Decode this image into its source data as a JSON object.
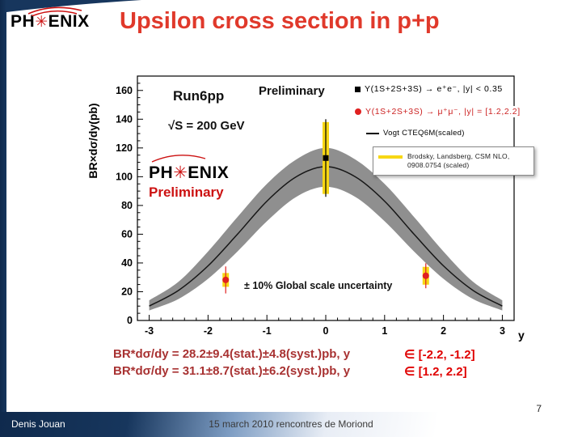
{
  "colors": {
    "navy": "#17365d",
    "title_red": "#e0392b",
    "formula_red": "#a83232",
    "range_red": "#e00000",
    "band_gray": "#8f8f8f",
    "curve_black": "#161616",
    "syst_yellow": "#f7d714",
    "marker_red": "#e02020",
    "logo_red": "#cc1111"
  },
  "header": {
    "logo": {
      "left": "PH",
      "star": "✳",
      "right": "ENIX"
    },
    "title": "Upsilon cross section in p+p"
  },
  "results": [
    {
      "formula": "BR*dσ/dy = 28.2±9.4(stat.)±4.8(syst.)pb, y",
      "range": "∈ [-2.2, -1.2]"
    },
    {
      "formula": "BR*dσ/dy = 31.1±8.7(stat.)±6.2(syst.)pb, y",
      "range": "∈ [1.2, 2.2]"
    }
  ],
  "footer": {
    "author": "Denis Jouan",
    "center": "15 march 2010  rencontres de Moriond",
    "page_number": "7"
  },
  "chart_data": {
    "type": "line",
    "xlabel": "y",
    "ylabel": "BR×dσ/dy(pb)",
    "xlim": [
      -3.2,
      3.2
    ],
    "ylim": [
      0,
      170
    ],
    "x_ticks": [
      -3,
      -2,
      -1,
      0,
      1,
      2,
      3
    ],
    "y_ticks": [
      0,
      20,
      40,
      60,
      80,
      100,
      120,
      140,
      160
    ],
    "grid": false,
    "legend_position": "top-right",
    "annotations": {
      "run_label": "Run6pp",
      "preliminary_top": "Preliminary",
      "energy": "√S = 200 GeV",
      "watermark_logo_left": "PH",
      "watermark_logo_star": "✳",
      "watermark_logo_right": "ENIX",
      "watermark_preliminary": "Preliminary",
      "scale_note": "± 10% Global scale uncertainty"
    },
    "legend": [
      {
        "marker": "black-square",
        "label": "Υ(1S+2S+3S) → e⁺e⁻, |y| < 0.35"
      },
      {
        "marker": "red-circle",
        "label": "Υ(1S+2S+3S) → μ⁺μ⁻, |y| = [1.2,2.2]"
      },
      {
        "marker": "black-line",
        "label": "Vogt CTEQ6M(scaled)"
      },
      {
        "marker": "yellow-line",
        "label": "Brodsky, Landsberg, CSM NLO, 0908.0754 (scaled)"
      }
    ],
    "theory_curve": {
      "name": "Vogt CTEQ6M (scaled)",
      "x": [
        -3,
        -2.5,
        -2,
        -1.5,
        -1,
        -0.5,
        0,
        0.5,
        1,
        1.5,
        2,
        2.5,
        3
      ],
      "y": [
        10,
        21,
        38,
        60,
        83,
        100,
        107,
        100,
        83,
        60,
        38,
        21,
        10
      ],
      "band_upper": [
        14,
        27,
        48,
        72,
        95,
        112,
        120,
        112,
        95,
        72,
        48,
        27,
        14
      ],
      "band_lower": [
        7,
        15,
        29,
        48,
        69,
        86,
        93,
        86,
        69,
        48,
        29,
        15,
        7
      ]
    },
    "series": [
      {
        "name": "Υ(1S+2S+3S) → e⁺e⁻, |y| < 0.35",
        "marker": "square",
        "color": "#000000",
        "points": [
          {
            "x": 0,
            "y": 113,
            "stat": 27,
            "syst": 25
          }
        ]
      },
      {
        "name": "Υ(1S+2S+3S) → μ⁺μ⁻, |y| = [1.2,2.2]",
        "marker": "circle",
        "color": "#e02020",
        "points": [
          {
            "x": -1.7,
            "y": 28.2,
            "stat": 9.4,
            "syst": 4.8
          },
          {
            "x": 1.7,
            "y": 31.1,
            "stat": 8.7,
            "syst": 6.2
          }
        ]
      }
    ]
  }
}
